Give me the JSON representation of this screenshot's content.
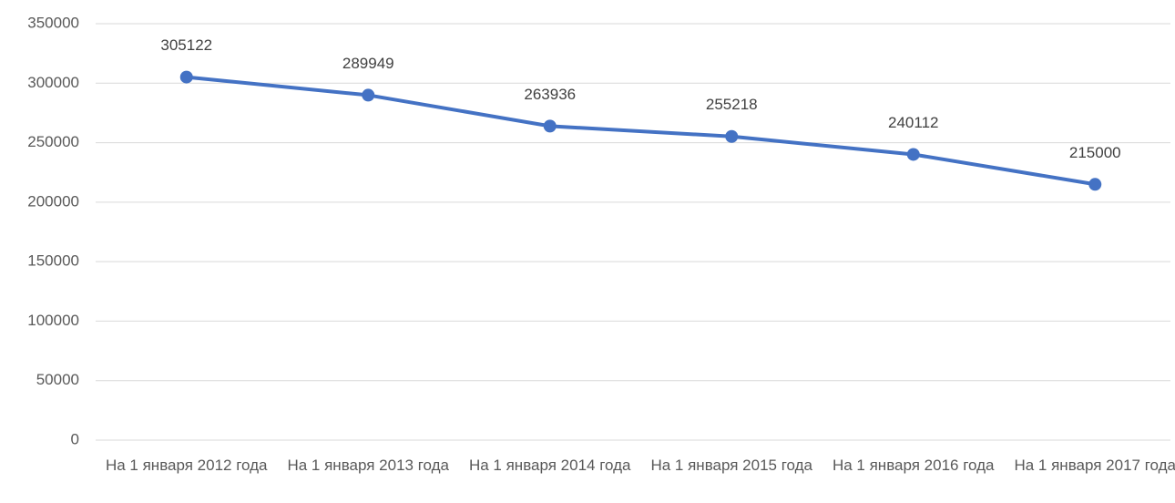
{
  "chart_data": {
    "type": "line",
    "categories": [
      "На 1 января 2012 года",
      "На 1 января 2013 года",
      "На 1 января 2014 года",
      "На 1 января 2015 года",
      "На 1 января 2016 года",
      "На 1 января 2017 года"
    ],
    "values": [
      305122,
      289949,
      263936,
      255218,
      240112,
      215000
    ],
    "color": "#4472c4",
    "ylim": [
      0,
      350000
    ],
    "yticks": [
      0,
      50000,
      100000,
      150000,
      200000,
      250000,
      300000,
      350000
    ],
    "grid": true
  }
}
